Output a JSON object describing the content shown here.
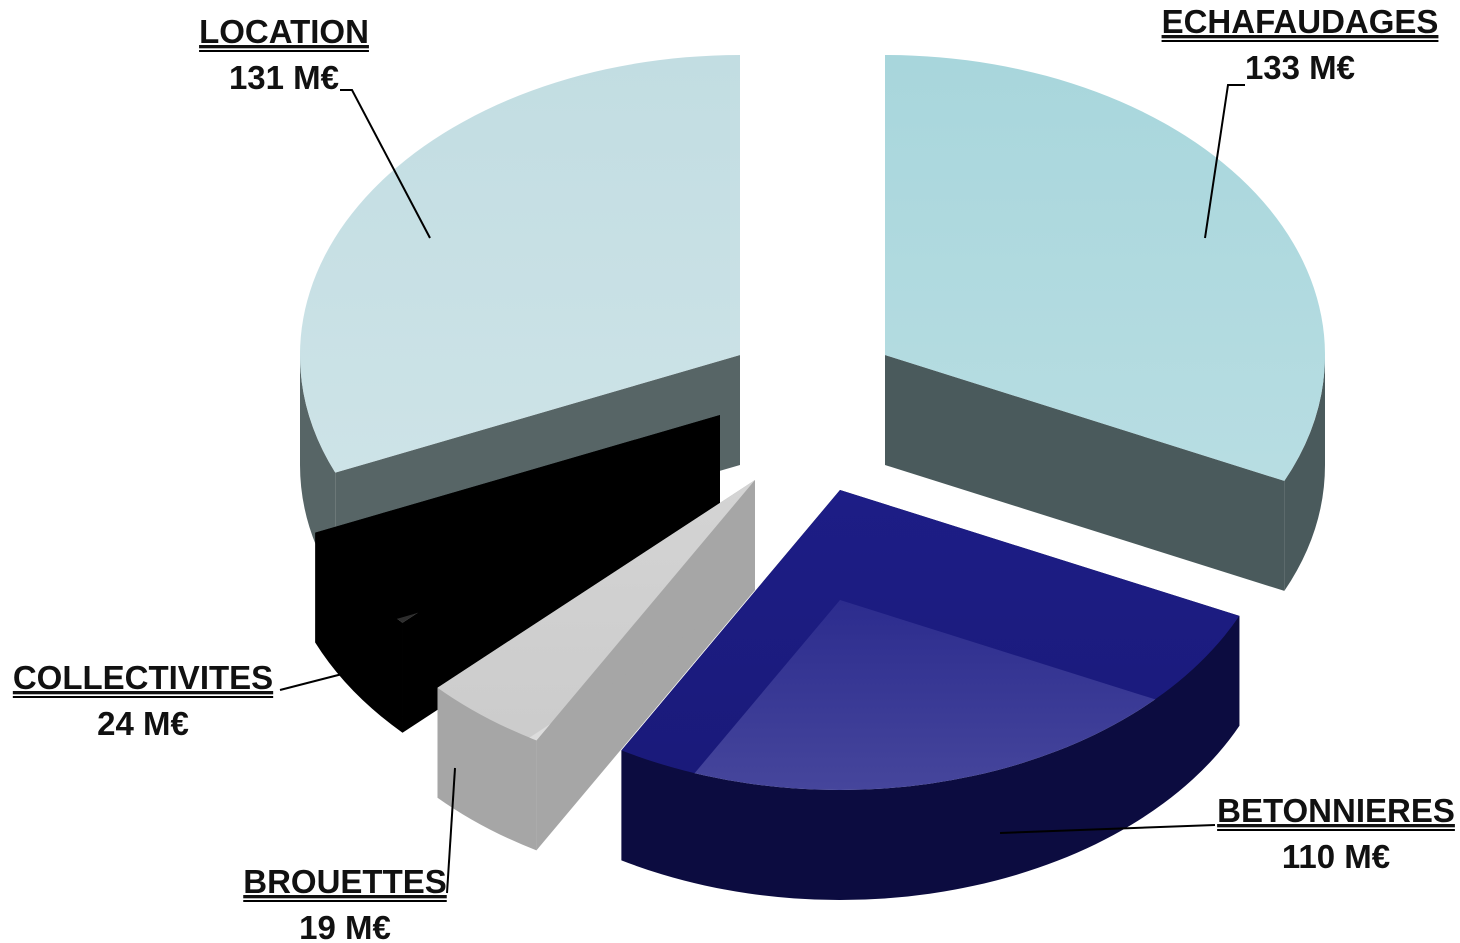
{
  "chart_data": {
    "type": "pie",
    "unit": "M€",
    "slices": [
      {
        "name": "ECHAFAUDAGES",
        "value": 133,
        "value_label": "133 M€",
        "top_color": "#a8d6dc",
        "side_color": "#4a5a5c"
      },
      {
        "name": "BETONNIERES",
        "value": 110,
        "value_label": "110 M€",
        "top_color": "#1d1d86",
        "side_color": "#0c0c40"
      },
      {
        "name": "BROUETTES",
        "value": 19,
        "value_label": "19 M€",
        "top_color": "#d4d4d4",
        "side_color": "#a6a6a6"
      },
      {
        "name": "COLLECTIVITES",
        "value": 24,
        "value_label": "24 M€",
        "top_color": "#000000",
        "side_color": "#000000"
      },
      {
        "name": "LOCATION",
        "value": 131,
        "value_label": "131 M€",
        "top_color": "#c2dde2",
        "side_color": "#576566"
      }
    ],
    "style": "3d-exploded"
  }
}
